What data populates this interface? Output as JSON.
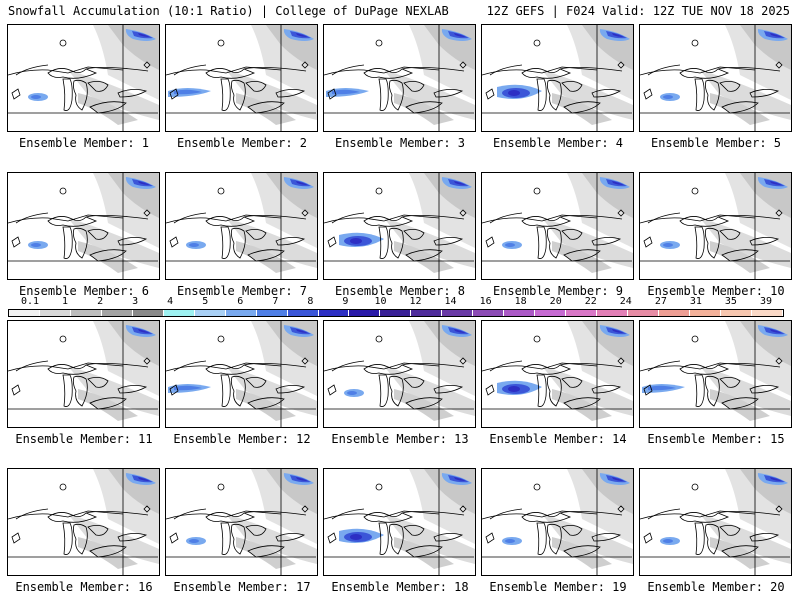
{
  "header": {
    "title_left": "Snowfall Accumulation (10:1 Ratio) | College of DuPage NEXLAB",
    "title_right": "12Z GEFS | F024 Valid: 12Z TUE NOV 18 2025"
  },
  "legend": {
    "ticks": [
      "0.1",
      "1",
      "2",
      "3",
      "4",
      "5",
      "6",
      "7",
      "8",
      "9",
      "10",
      "12",
      "14",
      "16",
      "18",
      "20",
      "22",
      "24",
      "27",
      "31",
      "35",
      "39"
    ],
    "colors": [
      "#f2f2f2",
      "#d8d8d8",
      "#bdbdbd",
      "#a3a3a3",
      "#8a8a8a",
      "#9ef1f1",
      "#a9d0f5",
      "#79a9ef",
      "#4f7fe6",
      "#3b56d8",
      "#2d2fc4",
      "#2a1aa9",
      "#3a2197",
      "#4f2c9b",
      "#6a3aa6",
      "#8c4bb5",
      "#ab59c6",
      "#c66ad2",
      "#d977c7",
      "#e27fb6",
      "#e78ca5",
      "#ee9e94",
      "#f3b19a",
      "#f7c7b0",
      "#fad9c7"
    ]
  },
  "members": [
    {
      "label": "Ensemble Member: 1",
      "snow": "low"
    },
    {
      "label": "Ensemble Member: 2",
      "snow": "mid"
    },
    {
      "label": "Ensemble Member: 3",
      "snow": "mid"
    },
    {
      "label": "Ensemble Member: 4",
      "snow": "high"
    },
    {
      "label": "Ensemble Member: 5",
      "snow": "low"
    },
    {
      "label": "Ensemble Member: 6",
      "snow": "low"
    },
    {
      "label": "Ensemble Member: 7",
      "snow": "low"
    },
    {
      "label": "Ensemble Member: 8",
      "snow": "high"
    },
    {
      "label": "Ensemble Member: 9",
      "snow": "low"
    },
    {
      "label": "Ensemble Member: 10",
      "snow": "low"
    },
    {
      "label": "Ensemble Member: 11",
      "snow": "none"
    },
    {
      "label": "Ensemble Member: 12",
      "snow": "mid"
    },
    {
      "label": "Ensemble Member: 13",
      "snow": "low"
    },
    {
      "label": "Ensemble Member: 14",
      "snow": "high"
    },
    {
      "label": "Ensemble Member: 15",
      "snow": "mid"
    },
    {
      "label": "Ensemble Member: 16",
      "snow": "none"
    },
    {
      "label": "Ensemble Member: 17",
      "snow": "low"
    },
    {
      "label": "Ensemble Member: 18",
      "snow": "high"
    },
    {
      "label": "Ensemble Member: 19",
      "snow": "low"
    },
    {
      "label": "Ensemble Member: 20",
      "snow": "low"
    }
  ]
}
